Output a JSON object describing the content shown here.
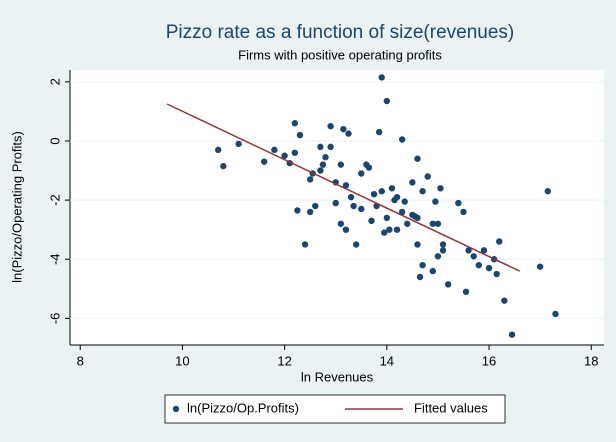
{
  "chart_data": {
    "type": "scatter",
    "title": "Pizzo rate as a function of size(revenues)",
    "subtitle": "Firms with positive operating profits",
    "x_label": "ln Revenues",
    "y_label": "ln(Pizzo/Operating Profits)",
    "xlim": [
      7.8,
      18.25
    ],
    "ylim": [
      -6.9,
      2.4
    ],
    "xticks": [
      8,
      10,
      12,
      14,
      16,
      18
    ],
    "yticks": [
      2,
      0,
      -2,
      -4,
      -6
    ],
    "grid": true,
    "legend": "bottom",
    "series": [
      {
        "name": "ln(Pizzo/Op.Profits)",
        "type": "scatter",
        "color": "#1a476f",
        "x": [
          10.7,
          10.8,
          11.1,
          11.6,
          11.8,
          12.0,
          12.1,
          12.2,
          12.3,
          12.2,
          12.25,
          12.4,
          12.5,
          12.5,
          12.55,
          12.6,
          12.7,
          12.7,
          12.75,
          12.8,
          12.9,
          12.9,
          13.0,
          13.0,
          13.1,
          13.1,
          13.15,
          13.2,
          13.2,
          13.25,
          13.3,
          13.35,
          13.4,
          13.5,
          13.5,
          13.6,
          13.65,
          13.7,
          13.75,
          13.8,
          13.85,
          13.9,
          13.9,
          13.95,
          14.0,
          14.0,
          14.05,
          14.1,
          14.15,
          14.2,
          14.2,
          14.3,
          14.3,
          14.35,
          14.4,
          14.5,
          14.5,
          14.55,
          14.6,
          14.6,
          14.6,
          14.65,
          14.7,
          14.7,
          14.8,
          14.9,
          14.9,
          14.95,
          15.0,
          15.0,
          15.05,
          15.1,
          15.1,
          15.2,
          15.4,
          15.5,
          15.55,
          15.6,
          15.7,
          15.8,
          15.9,
          16.0,
          16.1,
          16.15,
          16.2,
          16.3,
          16.45,
          17.0,
          17.15,
          17.3
        ],
        "values": [
          -0.3,
          -0.85,
          -0.1,
          -0.7,
          -0.3,
          -0.5,
          -0.75,
          0.6,
          0.2,
          -0.4,
          -2.35,
          -3.5,
          -2.4,
          -1.3,
          -1.1,
          -2.2,
          -0.2,
          -1.0,
          -0.8,
          -0.55,
          0.5,
          -0.2,
          -1.4,
          -2.1,
          -0.8,
          -2.8,
          0.4,
          -1.5,
          -3.0,
          0.25,
          -1.9,
          -2.2,
          -3.5,
          -2.3,
          -1.1,
          -0.8,
          -0.9,
          -2.7,
          -1.8,
          -2.2,
          0.3,
          2.15,
          -1.7,
          -3.1,
          1.35,
          -2.6,
          -3.0,
          -1.6,
          -2.0,
          -1.9,
          -3.0,
          0.05,
          -2.4,
          -2.05,
          -2.8,
          -1.4,
          -2.5,
          -2.55,
          -0.6,
          -2.6,
          -3.5,
          -4.6,
          -1.7,
          -4.2,
          -1.2,
          -4.4,
          -2.8,
          -2.05,
          -3.9,
          -2.8,
          -1.6,
          -3.5,
          -3.7,
          -4.85,
          -2.1,
          -2.4,
          -5.1,
          -3.7,
          -3.9,
          -4.2,
          -3.7,
          -4.3,
          -4.0,
          -4.5,
          -3.4,
          -5.4,
          -6.55,
          -4.25,
          -1.7,
          -5.85
        ]
      },
      {
        "name": "Fitted values",
        "type": "line",
        "color": "#90353b",
        "x": [
          9.7,
          16.6
        ],
        "values": [
          1.25,
          -4.4
        ]
      }
    ]
  }
}
